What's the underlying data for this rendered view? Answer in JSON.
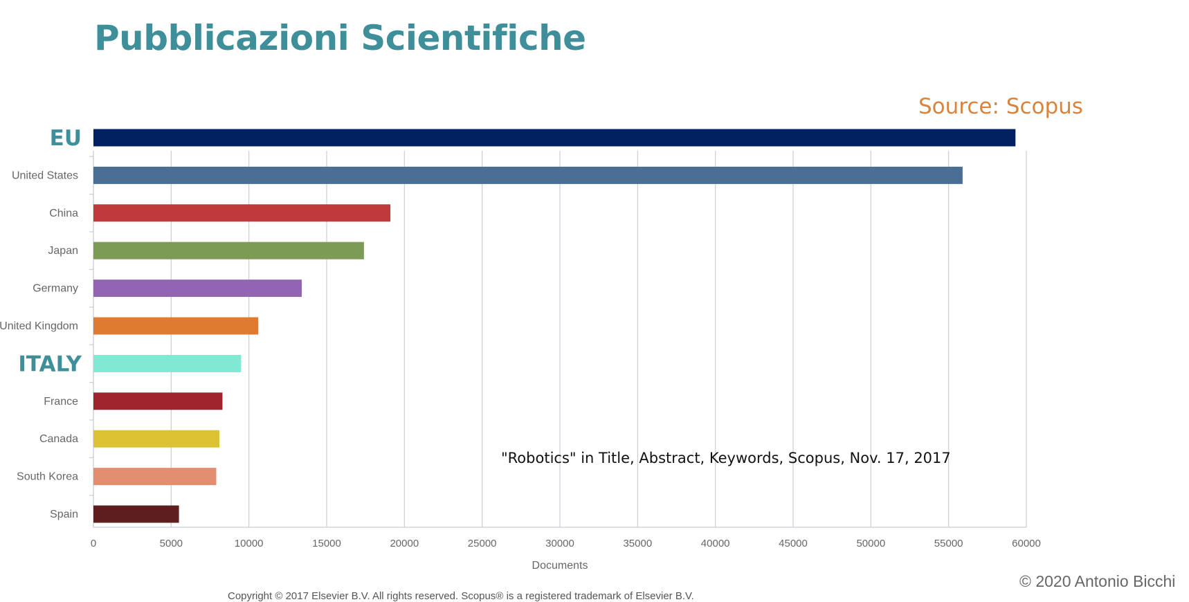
{
  "page": {
    "title": "Pubblicazioni Scientifiche",
    "source": "Source: Scopus",
    "note": "\"Robotics\" in Title, Abstract, Keywords, Scopus, Nov. 17, 2017",
    "author": "© 2020 Antonio Bicchi",
    "copyright": "Copyright © 2017 Elsevier B.V. All rights reserved. Scopus® is a registered trademark of Elsevier B.V."
  },
  "chart_data": {
    "type": "bar",
    "orientation": "horizontal",
    "categories": [
      "EU",
      "United States",
      "China",
      "Japan",
      "Germany",
      "United Kingdom",
      "ITALY",
      "France",
      "Canada",
      "South Korea",
      "Spain"
    ],
    "values": [
      59300,
      55900,
      19100,
      17400,
      13400,
      10600,
      9500,
      8300,
      8100,
      7900,
      5500
    ],
    "colors": [
      "#002060",
      "#4a6e94",
      "#c0393f",
      "#7c9c56",
      "#9265b3",
      "#e07931",
      "#7fe9d3",
      "#a0242b",
      "#dcc232",
      "#e38d71",
      "#5e1e20"
    ],
    "highlight_categories": [
      "EU",
      "ITALY"
    ],
    "highlight_color": "#3f8f9a",
    "xlabel": "Documents",
    "ylabel": "",
    "xlim": [
      0,
      60000
    ],
    "xticks": [
      0,
      5000,
      10000,
      15000,
      20000,
      25000,
      30000,
      35000,
      40000,
      45000,
      50000,
      55000,
      60000
    ],
    "grid": true,
    "legend": "none"
  }
}
